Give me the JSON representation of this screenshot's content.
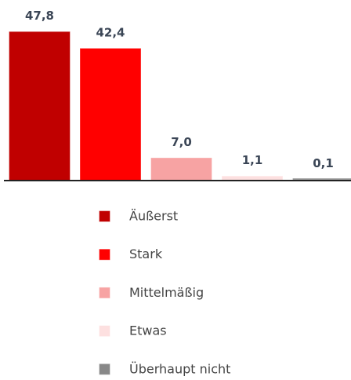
{
  "chart_data": {
    "type": "bar",
    "categories": [
      "Äußerst",
      "Stark",
      "Mittelmäßig",
      "Etwas",
      "Überhaupt nicht"
    ],
    "values": [
      47.8,
      42.4,
      7.0,
      1.1,
      0.1
    ],
    "value_labels": [
      "47,8",
      "42,4",
      "7,0",
      "1,1",
      "0,1"
    ],
    "colors": [
      "#c00000",
      "#ff0000",
      "#f7a3a3",
      "#fde0e0",
      "#888888"
    ],
    "ylim": [
      0,
      50
    ],
    "legend": "bottom"
  }
}
